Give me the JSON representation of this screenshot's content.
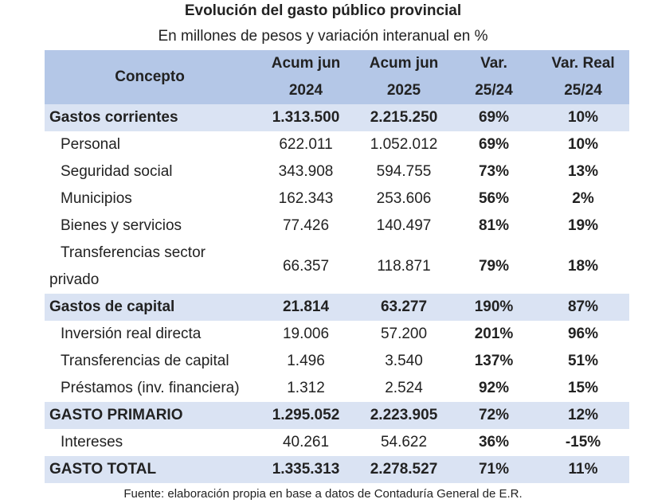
{
  "title": "Evolución del gasto público provincial",
  "subtitle": "En millones de pesos y variación interanual en %",
  "source": "Fuente: elaboración propia en base a datos de Contaduría General de E.R.",
  "chart_data": {
    "type": "table",
    "headers": {
      "concept": "Concepto",
      "col1": [
        "Acum jun",
        "2024"
      ],
      "col2": [
        "Acum jun",
        "2025"
      ],
      "col3": [
        "Var.",
        "25/24"
      ],
      "col4": [
        "Var. Real",
        "25/24"
      ]
    },
    "rows": [
      {
        "label": "Gastos corrientes",
        "section": true,
        "v2024": "1.313.500",
        "v2025": "2.215.250",
        "var": "69%",
        "var_real": "10%"
      },
      {
        "label": "Personal",
        "section": false,
        "v2024": "622.011",
        "v2025": "1.052.012",
        "var": "69%",
        "var_real": "10%"
      },
      {
        "label": "Seguridad social",
        "section": false,
        "v2024": "343.908",
        "v2025": "594.755",
        "var": "73%",
        "var_real": "13%"
      },
      {
        "label": "Municipios",
        "section": false,
        "v2024": "162.343",
        "v2025": "253.606",
        "var": "56%",
        "var_real": "2%"
      },
      {
        "label": "Bienes y servicios",
        "section": false,
        "v2024": "77.426",
        "v2025": "140.497",
        "var": "81%",
        "var_real": "19%"
      },
      {
        "label": "Transferencias sector privado",
        "label_lines": [
          "Transferencias sector",
          "privado"
        ],
        "section": false,
        "v2024": "66.357",
        "v2025": "118.871",
        "var": "79%",
        "var_real": "18%"
      },
      {
        "label": "Gastos de capital",
        "section": true,
        "v2024": "21.814",
        "v2025": "63.277",
        "var": "190%",
        "var_real": "87%"
      },
      {
        "label": "Inversión real directa",
        "section": false,
        "v2024": "19.006",
        "v2025": "57.200",
        "var": "201%",
        "var_real": "96%"
      },
      {
        "label": "Transferencias de capital",
        "section": false,
        "v2024": "1.496",
        "v2025": "3.540",
        "var": "137%",
        "var_real": "51%"
      },
      {
        "label": "Préstamos (inv. financiera)",
        "section": false,
        "v2024": "1.312",
        "v2025": "2.524",
        "var": "92%",
        "var_real": "15%"
      },
      {
        "label": "GASTO PRIMARIO",
        "section": true,
        "v2024": "1.295.052",
        "v2025": "2.223.905",
        "var": "72%",
        "var_real": "12%"
      },
      {
        "label": "Intereses",
        "section": false,
        "v2024": "40.261",
        "v2025": "54.622",
        "var": "36%",
        "var_real": "-15%"
      },
      {
        "label": "GASTO TOTAL",
        "section": true,
        "v2024": "1.335.313",
        "v2025": "2.278.527",
        "var": "71%",
        "var_real": "11%"
      }
    ]
  },
  "colors": {
    "header_bg": "#b4c7e7",
    "section_bg": "#dae3f3"
  }
}
